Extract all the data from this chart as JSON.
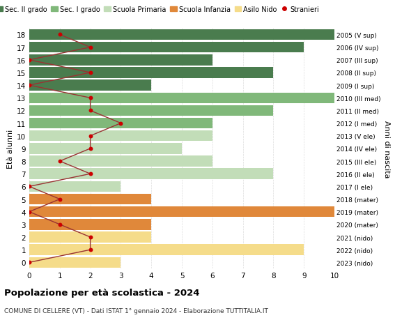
{
  "ages": [
    18,
    17,
    16,
    15,
    14,
    13,
    12,
    11,
    10,
    9,
    8,
    7,
    6,
    5,
    4,
    3,
    2,
    1,
    0
  ],
  "years": [
    "2005 (V sup)",
    "2006 (IV sup)",
    "2007 (III sup)",
    "2008 (II sup)",
    "2009 (I sup)",
    "2010 (III med)",
    "2011 (II med)",
    "2012 (I med)",
    "2013 (V ele)",
    "2014 (IV ele)",
    "2015 (III ele)",
    "2016 (II ele)",
    "2017 (I ele)",
    "2018 (mater)",
    "2019 (mater)",
    "2020 (mater)",
    "2021 (nido)",
    "2022 (nido)",
    "2023 (nido)"
  ],
  "bar_values": [
    10,
    9,
    6,
    8,
    4,
    10,
    8,
    6,
    6,
    5,
    6,
    8,
    3,
    4,
    10,
    4,
    4,
    9,
    3
  ],
  "bar_colors": [
    "#4a7c4e",
    "#4a7c4e",
    "#4a7c4e",
    "#4a7c4e",
    "#4a7c4e",
    "#80b87a",
    "#80b87a",
    "#80b87a",
    "#c2ddb8",
    "#c2ddb8",
    "#c2ddb8",
    "#c2ddb8",
    "#c2ddb8",
    "#e0883a",
    "#e0883a",
    "#e0883a",
    "#f5dc8a",
    "#f5dc8a",
    "#f5dc8a"
  ],
  "stranieri_x": [
    1,
    2,
    0,
    2,
    0,
    2,
    2,
    3,
    2,
    2,
    1,
    2,
    0,
    1,
    0,
    1,
    2,
    2,
    0
  ],
  "legend_labels": [
    "Sec. II grado",
    "Sec. I grado",
    "Scuola Primaria",
    "Scuola Infanzia",
    "Asilo Nido",
    "Stranieri"
  ],
  "legend_colors": [
    "#4a7c4e",
    "#80b87a",
    "#c2ddb8",
    "#e0883a",
    "#f5dc8a",
    "#cc0000"
  ],
  "title": "Popolazione per età scolastica - 2024",
  "subtitle": "COMUNE DI CELLERE (VT) - Dati ISTAT 1° gennaio 2024 - Elaborazione TUTTITALIA.IT",
  "ylabel": "Età alunni",
  "right_ylabel": "Anni di nascita",
  "xlim": [
    0,
    10
  ],
  "ylim": [
    -0.5,
    18.5
  ],
  "bg_color": "#ffffff",
  "grid_color": "#dddddd",
  "bar_height": 0.85,
  "stranieri_color": "#cc0000",
  "stranieri_line_color": "#993333"
}
